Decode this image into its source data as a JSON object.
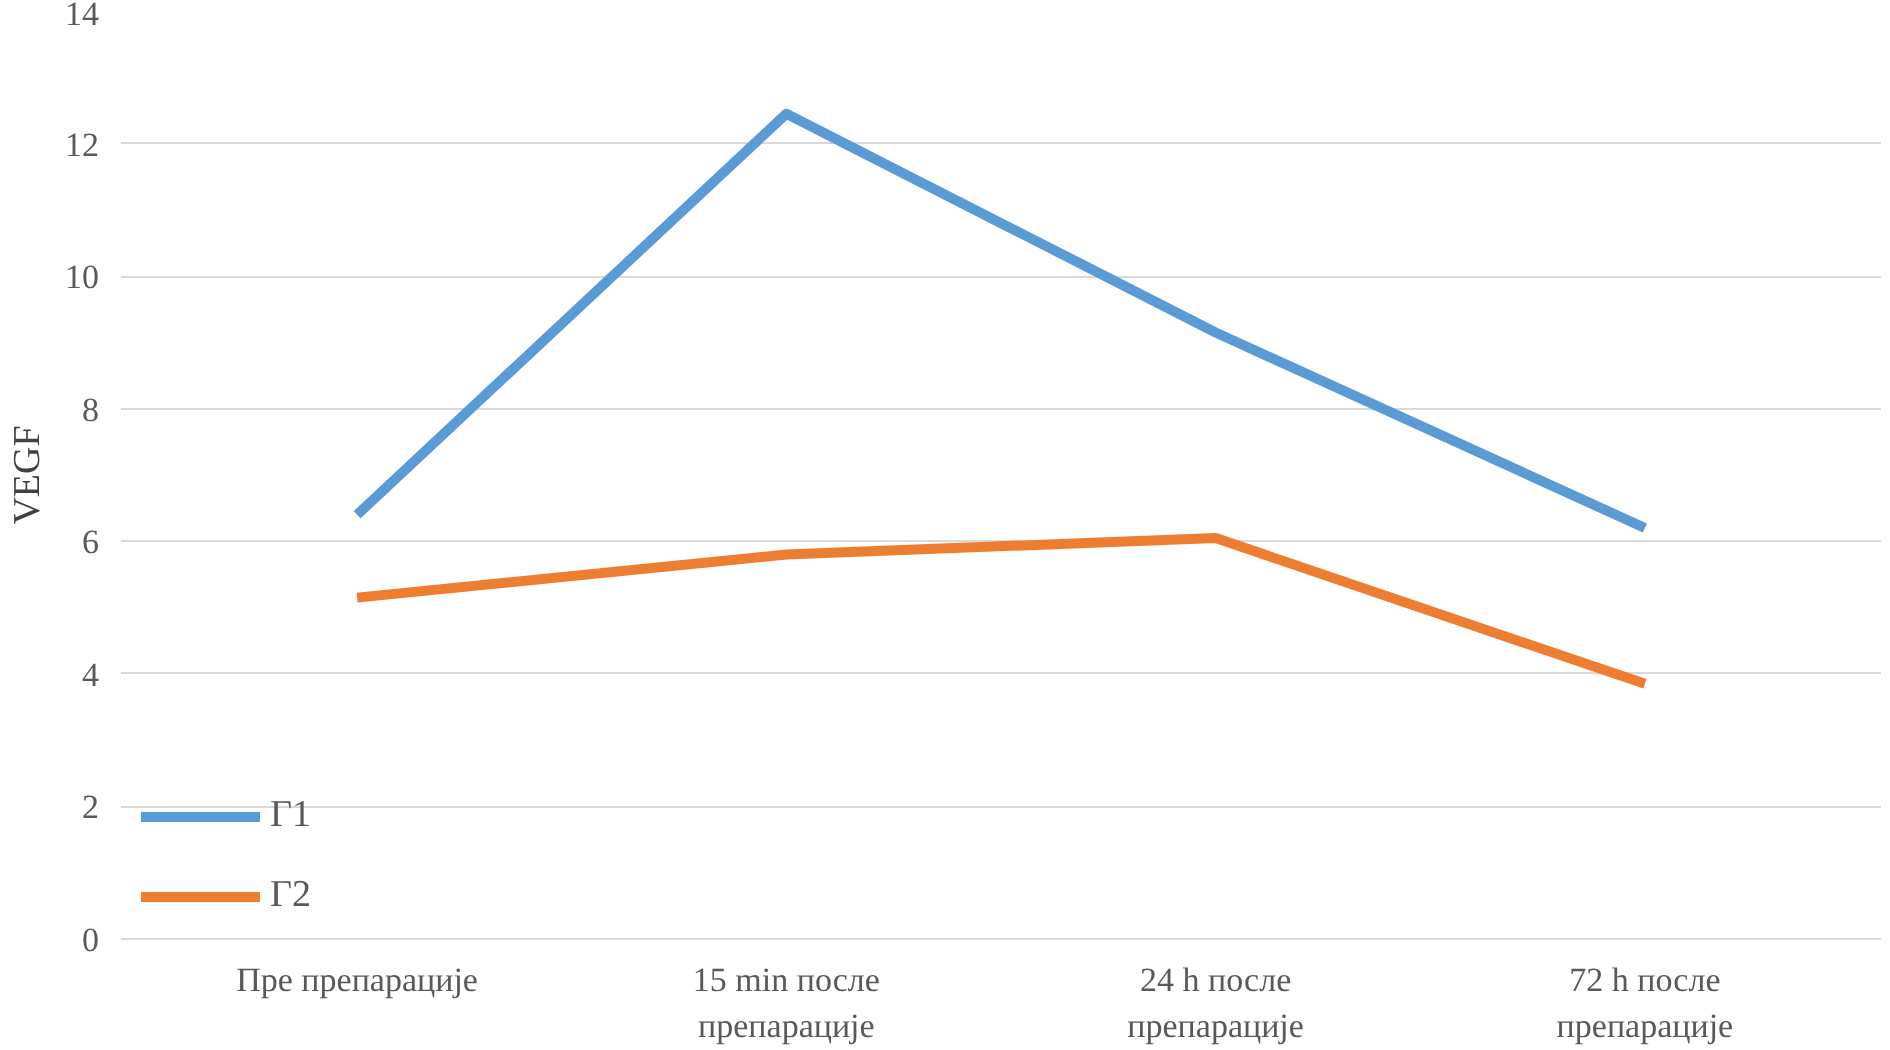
{
  "chart_data": {
    "type": "line",
    "ylabel": "VEGF",
    "categories": [
      "Пре препарације",
      "15 min после\nпрепарације",
      "24 h после\nпрепарације",
      "72 h после\nпрепарације"
    ],
    "series": [
      {
        "name": "Г1",
        "color": "#5b9bd5",
        "values": [
          6.4,
          12.45,
          9.15,
          6.2
        ]
      },
      {
        "name": "Г2",
        "color": "#ed7d31",
        "values": [
          5.15,
          5.8,
          6.05,
          3.85
        ]
      }
    ],
    "ylim": [
      0,
      14
    ],
    "yticks": [
      0,
      2,
      4,
      6,
      8,
      10,
      12,
      14
    ],
    "grid": "y",
    "legend": "bottom left",
    "marker": "none",
    "line_style": "solid"
  }
}
